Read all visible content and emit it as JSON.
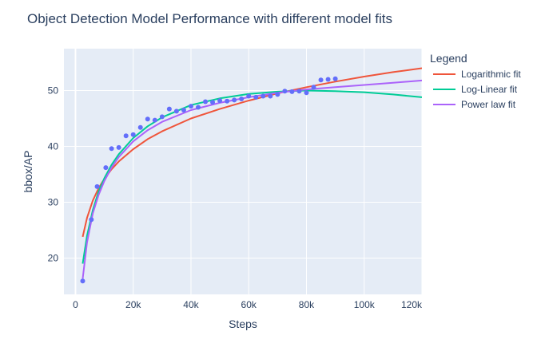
{
  "chart_data": {
    "type": "scatter",
    "title": "Object Detection Model Performance with different model fits",
    "xlabel": "Steps",
    "ylabel": "bbox/AP",
    "xlim": [
      -4000,
      120000
    ],
    "ylim": [
      13.5,
      57.5
    ],
    "x_ticks": [
      0,
      20000,
      40000,
      60000,
      80000,
      100000,
      120000
    ],
    "x_tick_labels": [
      "0",
      "20k",
      "40k",
      "60k",
      "80k",
      "100k",
      "120k"
    ],
    "y_ticks": [
      20,
      30,
      40,
      50
    ],
    "y_tick_labels": [
      "20",
      "30",
      "40",
      "50"
    ],
    "grid": true,
    "legend": {
      "title": "Legend",
      "position": "right",
      "entries": [
        "Logarithmic fit",
        "Log-Linear fit",
        "Power law fit"
      ]
    },
    "points": {
      "name": "bbox/AP",
      "color": "#636efa",
      "x": [
        2500,
        5500,
        7500,
        10500,
        12500,
        15000,
        17500,
        20000,
        22500,
        25000,
        27500,
        30000,
        32500,
        35000,
        37500,
        40000,
        42500,
        45000,
        47500,
        50000,
        52500,
        55000,
        57500,
        60000,
        62500,
        65000,
        67500,
        70000,
        72500,
        75000,
        77500,
        80000,
        82500,
        85000,
        87500,
        90000
      ],
      "y": [
        15.9,
        26.9,
        32.8,
        36.2,
        39.6,
        39.8,
        41.9,
        42.1,
        43.4,
        44.9,
        44.7,
        45.3,
        46.7,
        46.3,
        46.5,
        47.2,
        47.0,
        48.0,
        47.9,
        48.2,
        48.1,
        48.3,
        48.5,
        49.0,
        48.8,
        49.0,
        49.0,
        49.3,
        49.9,
        49.8,
        49.9,
        49.6,
        50.6,
        51.9,
        52.0,
        52.1
      ]
    },
    "series": [
      {
        "name": "Logarithmic fit",
        "color": "#ef553b",
        "x": [
          2500,
          4000,
          6000,
          8000,
          10000,
          12500,
          15000,
          20000,
          25000,
          30000,
          40000,
          50000,
          60000,
          70000,
          80000,
          90000,
          100000,
          110000,
          120000
        ],
        "y": [
          23.8,
          27.2,
          30.3,
          32.5,
          34.2,
          35.9,
          37.3,
          39.5,
          41.3,
          42.7,
          45.0,
          46.7,
          48.2,
          49.5,
          50.6,
          51.6,
          52.5,
          53.3,
          54.0
        ]
      },
      {
        "name": "Log-Linear fit",
        "color": "#00cc96",
        "x": [
          2500,
          4000,
          6000,
          8000,
          10000,
          12500,
          15000,
          20000,
          25000,
          30000,
          40000,
          50000,
          60000,
          70000,
          80000,
          90000,
          100000,
          110000,
          120000
        ],
        "y": [
          19.0,
          24.0,
          28.6,
          31.9,
          34.3,
          36.7,
          38.6,
          41.5,
          43.6,
          45.2,
          47.4,
          48.6,
          49.4,
          49.8,
          50.0,
          49.9,
          49.7,
          49.3,
          48.8
        ]
      },
      {
        "name": "Power law fit",
        "color": "#ab63fa",
        "x": [
          2500,
          4000,
          6000,
          8000,
          10000,
          12500,
          15000,
          20000,
          25000,
          30000,
          40000,
          50000,
          60000,
          70000,
          80000,
          90000,
          100000,
          110000,
          120000
        ],
        "y": [
          16.3,
          22.8,
          28.0,
          31.3,
          33.8,
          36.2,
          38.1,
          40.9,
          42.9,
          44.4,
          46.5,
          47.8,
          48.8,
          49.6,
          50.2,
          50.6,
          51.0,
          51.4,
          51.8
        ]
      }
    ]
  }
}
